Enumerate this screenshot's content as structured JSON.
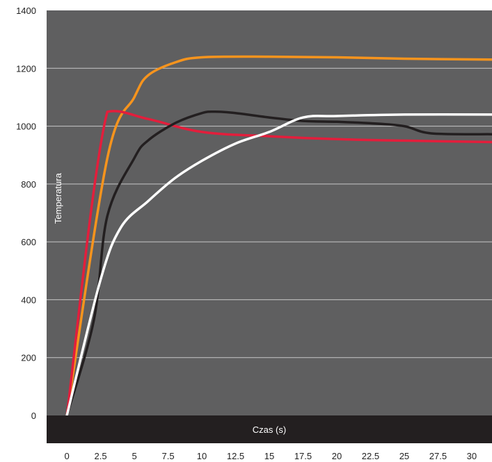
{
  "chart_data": {
    "type": "line",
    "title": "",
    "xlabel": "Czas (s)",
    "ylabel": "Temperatura",
    "xlim": [
      -1.5,
      31.5
    ],
    "ylim": [
      0,
      1400
    ],
    "x_ticks": [
      "0",
      "2.5",
      "5",
      "7.5",
      "10",
      "12.5",
      "15",
      "17.5",
      "20",
      "22.5",
      "25",
      "27.5",
      "30"
    ],
    "y_ticks": [
      "0",
      "200",
      "400",
      "600",
      "800",
      "1000",
      "1200",
      "1400"
    ],
    "grid": "horizontal",
    "colors": {
      "plot_background": "#5f5f60",
      "x_axis_band": "#231f20",
      "grid": "#c8c8c8"
    },
    "series": [
      {
        "color": "#f7941d",
        "points": [
          [
            0,
            0
          ],
          [
            3,
            890
          ],
          [
            5,
            1100
          ],
          [
            6,
            1175
          ],
          [
            8,
            1220
          ],
          [
            10,
            1238
          ],
          [
            15,
            1240
          ],
          [
            20,
            1238
          ],
          [
            25,
            1233
          ],
          [
            31.5,
            1230
          ]
        ]
      },
      {
        "color": "#e31e3c",
        "points": [
          [
            0,
            0
          ],
          [
            3,
            1050
          ],
          [
            6,
            1025
          ],
          [
            10,
            980
          ],
          [
            15,
            965
          ],
          [
            20,
            955
          ],
          [
            25,
            950
          ],
          [
            31.5,
            945
          ]
        ]
      },
      {
        "color": "#231f20",
        "points": [
          [
            0,
            0
          ],
          [
            2,
            330
          ],
          [
            3,
            690
          ],
          [
            5,
            890
          ],
          [
            6,
            950
          ],
          [
            8,
            1010
          ],
          [
            10,
            1045
          ],
          [
            11,
            1050
          ],
          [
            12.5,
            1045
          ],
          [
            15,
            1030
          ],
          [
            17.5,
            1018
          ],
          [
            20,
            1015
          ],
          [
            22.5,
            1010
          ],
          [
            25,
            1000
          ],
          [
            27,
            975
          ],
          [
            31.5,
            972
          ]
        ]
      },
      {
        "color": "#ffffff",
        "points": [
          [
            0,
            0
          ],
          [
            2.5,
            470
          ],
          [
            4,
            650
          ],
          [
            6,
            740
          ],
          [
            8,
            820
          ],
          [
            10,
            880
          ],
          [
            12.5,
            940
          ],
          [
            15,
            980
          ],
          [
            17.5,
            1030
          ],
          [
            20,
            1035
          ],
          [
            25,
            1040
          ],
          [
            31.5,
            1040
          ]
        ]
      }
    ]
  }
}
